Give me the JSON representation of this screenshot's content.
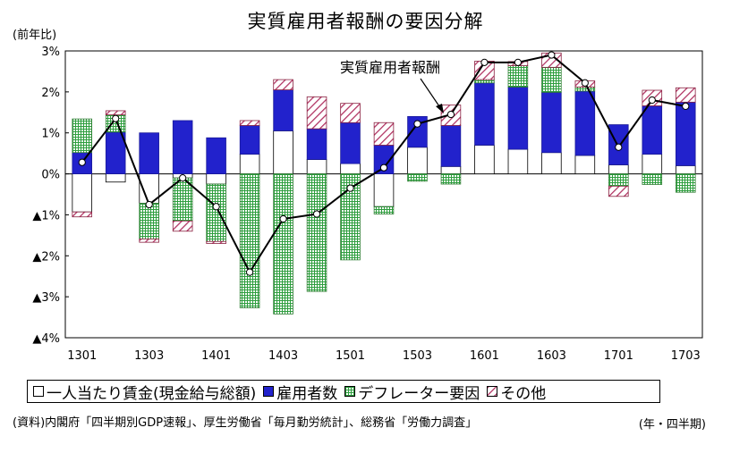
{
  "chart_data": {
    "type": "bar",
    "title": "実質雇用者報酬の要因分解",
    "ylabel": "(前年比)",
    "xlabel": "(年・四半期)",
    "annotation": "実質雇用者報酬",
    "source": "(資料)内閣府「四半期別GDP速報」、厚生労働省「毎月勤労統計」、総務省「労働力調査」",
    "ylim": [
      -4,
      3
    ],
    "yticks": [
      {
        "value": 3,
        "label": "3%"
      },
      {
        "value": 2,
        "label": "2%"
      },
      {
        "value": 1,
        "label": "1%"
      },
      {
        "value": 0,
        "label": "0%"
      },
      {
        "value": -1,
        "label": "▲1%"
      },
      {
        "value": -2,
        "label": "▲2%"
      },
      {
        "value": -3,
        "label": "▲3%"
      },
      {
        "value": -4,
        "label": "▲4%"
      }
    ],
    "categories": [
      "1301",
      "1302",
      "1303",
      "1304",
      "1401",
      "1402",
      "1403",
      "1404",
      "1501",
      "1502",
      "1503",
      "1504",
      "1601",
      "1602",
      "1603",
      "1604",
      "1701",
      "1702",
      "1703"
    ],
    "tick_labels": [
      "1301",
      "",
      "1303",
      "",
      "1401",
      "",
      "1403",
      "",
      "1501",
      "",
      "1503",
      "",
      "1601",
      "",
      "1603",
      "",
      "1701",
      "",
      "1703"
    ],
    "series": [
      {
        "name": "一人当たり賃金(現金給与総額)",
        "pattern": "white",
        "values": [
          -0.93,
          -0.2,
          -0.72,
          -0.1,
          -0.25,
          0.48,
          1.05,
          0.35,
          0.25,
          -0.8,
          0.65,
          0.18,
          0.7,
          0.6,
          0.52,
          0.45,
          0.22,
          0.48,
          0.2
        ]
      },
      {
        "name": "雇用者数",
        "pattern": "blue",
        "values": [
          0.52,
          1.02,
          1.0,
          1.3,
          0.88,
          0.7,
          1.0,
          0.75,
          1.0,
          0.7,
          0.75,
          1.0,
          1.52,
          1.52,
          1.47,
          1.57,
          0.98,
          1.18,
          1.55
        ]
      },
      {
        "name": "デフレーター要因",
        "pattern": "green",
        "values": [
          0.82,
          0.42,
          -0.87,
          -1.05,
          -1.4,
          -3.27,
          -3.42,
          -2.87,
          -2.1,
          -0.18,
          -0.18,
          -0.25,
          0.08,
          0.52,
          0.61,
          0.1,
          -0.3,
          -0.26,
          -0.45
        ]
      },
      {
        "name": "その他",
        "pattern": "hatch",
        "values": [
          -0.12,
          0.1,
          -0.08,
          -0.25,
          -0.05,
          0.12,
          0.25,
          0.78,
          0.47,
          0.55,
          0.0,
          0.5,
          0.45,
          0.1,
          0.35,
          0.15,
          -0.25,
          0.38,
          0.35
        ]
      },
      {
        "name": "実質雇用者報酬",
        "type": "line",
        "values": [
          0.28,
          1.35,
          -0.75,
          -0.1,
          -0.8,
          -2.4,
          -1.1,
          -0.98,
          -0.35,
          0.15,
          1.22,
          1.45,
          2.72,
          2.72,
          2.9,
          2.22,
          0.65,
          1.8,
          1.65
        ]
      }
    ],
    "legend": [
      "一人当たり賃金(現金給与総額)",
      "雇用者数",
      "デフレーター要因",
      "その他"
    ],
    "grid": false,
    "colors": {
      "blue": "#2222cc",
      "green": "#2e9e3e",
      "hatch": "#b03060",
      "line": "#000000"
    }
  }
}
